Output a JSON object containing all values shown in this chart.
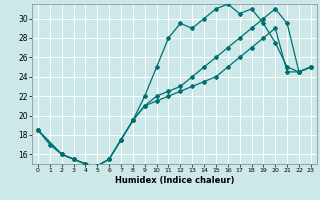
{
  "title": "",
  "xlabel": "Humidex (Indice chaleur)",
  "bg_color": "#cce8e8",
  "grid_color": "#ffffff",
  "line_color": "#007070",
  "xlim": [
    -0.5,
    23.5
  ],
  "ylim": [
    15,
    31.5
  ],
  "xticks": [
    0,
    1,
    2,
    3,
    4,
    5,
    6,
    7,
    8,
    9,
    10,
    11,
    12,
    13,
    14,
    15,
    16,
    17,
    18,
    19,
    20,
    21,
    22,
    23
  ],
  "yticks": [
    16,
    18,
    20,
    22,
    24,
    26,
    28,
    30
  ],
  "line1_x": [
    0,
    1,
    2,
    3,
    4,
    5,
    6,
    7,
    8,
    9,
    10,
    11,
    12,
    13,
    14,
    15,
    16,
    17,
    18,
    19,
    20,
    21,
    22,
    23
  ],
  "line1_y": [
    18.5,
    17.0,
    16.0,
    15.5,
    15.0,
    14.8,
    15.5,
    17.5,
    19.5,
    22.0,
    25.0,
    28.0,
    29.5,
    29.0,
    30.0,
    31.0,
    31.5,
    30.5,
    31.0,
    29.5,
    27.5,
    25.0,
    24.5,
    25.0
  ],
  "line2_x": [
    0,
    2,
    3,
    4,
    5,
    6,
    7,
    8,
    9,
    10,
    11,
    12,
    13,
    14,
    15,
    16,
    17,
    18,
    19,
    20,
    21,
    22,
    23
  ],
  "line2_y": [
    18.5,
    16.0,
    15.5,
    15.0,
    14.8,
    15.5,
    17.5,
    19.5,
    21.0,
    22.0,
    22.5,
    23.0,
    24.0,
    25.0,
    26.0,
    27.0,
    28.0,
    29.0,
    30.0,
    31.0,
    29.5,
    24.5,
    25.0
  ],
  "line3_x": [
    0,
    2,
    3,
    4,
    5,
    6,
    7,
    8,
    9,
    10,
    11,
    12,
    13,
    14,
    15,
    16,
    17,
    18,
    19,
    20,
    21,
    22,
    23
  ],
  "line3_y": [
    18.5,
    16.0,
    15.5,
    15.0,
    14.8,
    15.5,
    17.5,
    19.5,
    21.0,
    21.5,
    22.0,
    22.5,
    23.0,
    23.5,
    24.0,
    25.0,
    26.0,
    27.0,
    28.0,
    29.0,
    24.5,
    24.5,
    25.0
  ]
}
